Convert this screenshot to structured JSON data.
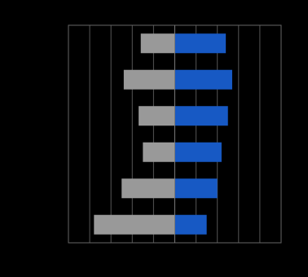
{
  "chart_data": {
    "type": "diverging-bar",
    "categories": [
      null,
      null,
      null,
      null,
      null,
      null
    ],
    "series": [
      {
        "color": "#999999",
        "values": [
          -1.6,
          -2.4,
          -1.7,
          -1.5,
          -2.5,
          -3.8
        ]
      },
      {
        "color": "#1759c4",
        "values": [
          2.4,
          2.7,
          2.5,
          2.2,
          2.0,
          1.5
        ]
      }
    ],
    "xlim": [
      -5,
      5
    ],
    "xticks": [
      -5,
      -4,
      -3,
      -2,
      -1,
      0,
      1,
      2,
      3,
      4,
      5
    ],
    "grid": true
  }
}
